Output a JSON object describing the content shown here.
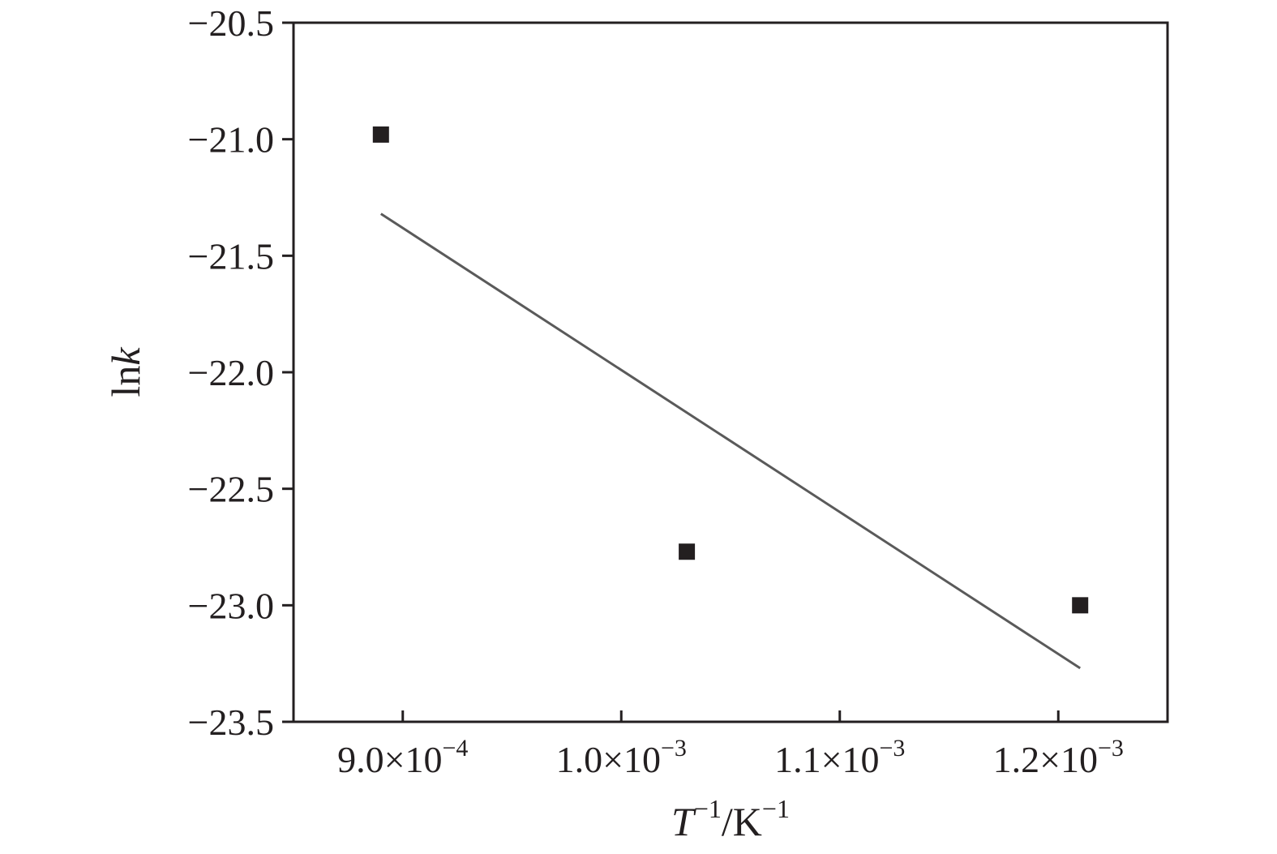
{
  "chart_data": {
    "type": "scatter",
    "xlabel": {
      "T": "T",
      "T_sup": "−1",
      "sep": "/K",
      "K_sup": "−1"
    },
    "ylabel": {
      "ln": "ln",
      "k": "k"
    },
    "xlim": [
      0.00085,
      0.00125
    ],
    "ylim": [
      -23.5,
      -20.5
    ],
    "x_ticks": [
      {
        "value": 0.0009,
        "mantissa": "9.0×10",
        "exp": "−4"
      },
      {
        "value": 0.001,
        "mantissa": "1.0×10",
        "exp": "−3"
      },
      {
        "value": 0.0011,
        "mantissa": "1.1×10",
        "exp": "−3"
      },
      {
        "value": 0.0012,
        "mantissa": "1.2×10",
        "exp": "−3"
      }
    ],
    "y_ticks": [
      {
        "value": -20.5,
        "label": "−20.5"
      },
      {
        "value": -21.0,
        "label": "−21.0"
      },
      {
        "value": -21.5,
        "label": "−21.5"
      },
      {
        "value": -22.0,
        "label": "−22.0"
      },
      {
        "value": -22.5,
        "label": "−22.5"
      },
      {
        "value": -23.0,
        "label": "−23.0"
      },
      {
        "value": -23.5,
        "label": "−23.5"
      }
    ],
    "series": [
      {
        "type": "scatter",
        "marker": "square",
        "color": "#231f20",
        "points": [
          {
            "x": 0.00089,
            "y": -20.98
          },
          {
            "x": 0.00103,
            "y": -22.77
          },
          {
            "x": 0.00121,
            "y": -23.0
          }
        ]
      },
      {
        "type": "line",
        "color": "#5a5a5a",
        "points": [
          {
            "x": 0.00089,
            "y": -21.32
          },
          {
            "x": 0.00121,
            "y": -23.27
          }
        ]
      }
    ],
    "grid": false,
    "legend": "none"
  }
}
